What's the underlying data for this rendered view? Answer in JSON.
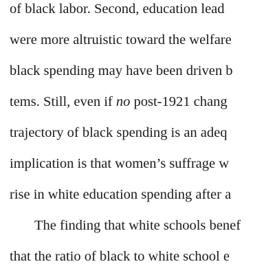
{
  "lines": [
    {
      "text": "of black labor.  Second, education lead"
    },
    {
      "text": "were more altruistic toward the welfare"
    },
    {
      "text": "black spending may have been driven b"
    },
    {
      "before": "tems.  Still, even if ",
      "emph": "no",
      "after": " post-1921 chang"
    },
    {
      "text": "trajectory of black spending is an adeq"
    },
    {
      "text": "implication is that women’s suffrage w"
    },
    {
      "text": "rise in white education spending after a"
    },
    {
      "text": "The finding that white schools benef"
    },
    {
      "text": "that the ratio of black to white school e"
    }
  ]
}
